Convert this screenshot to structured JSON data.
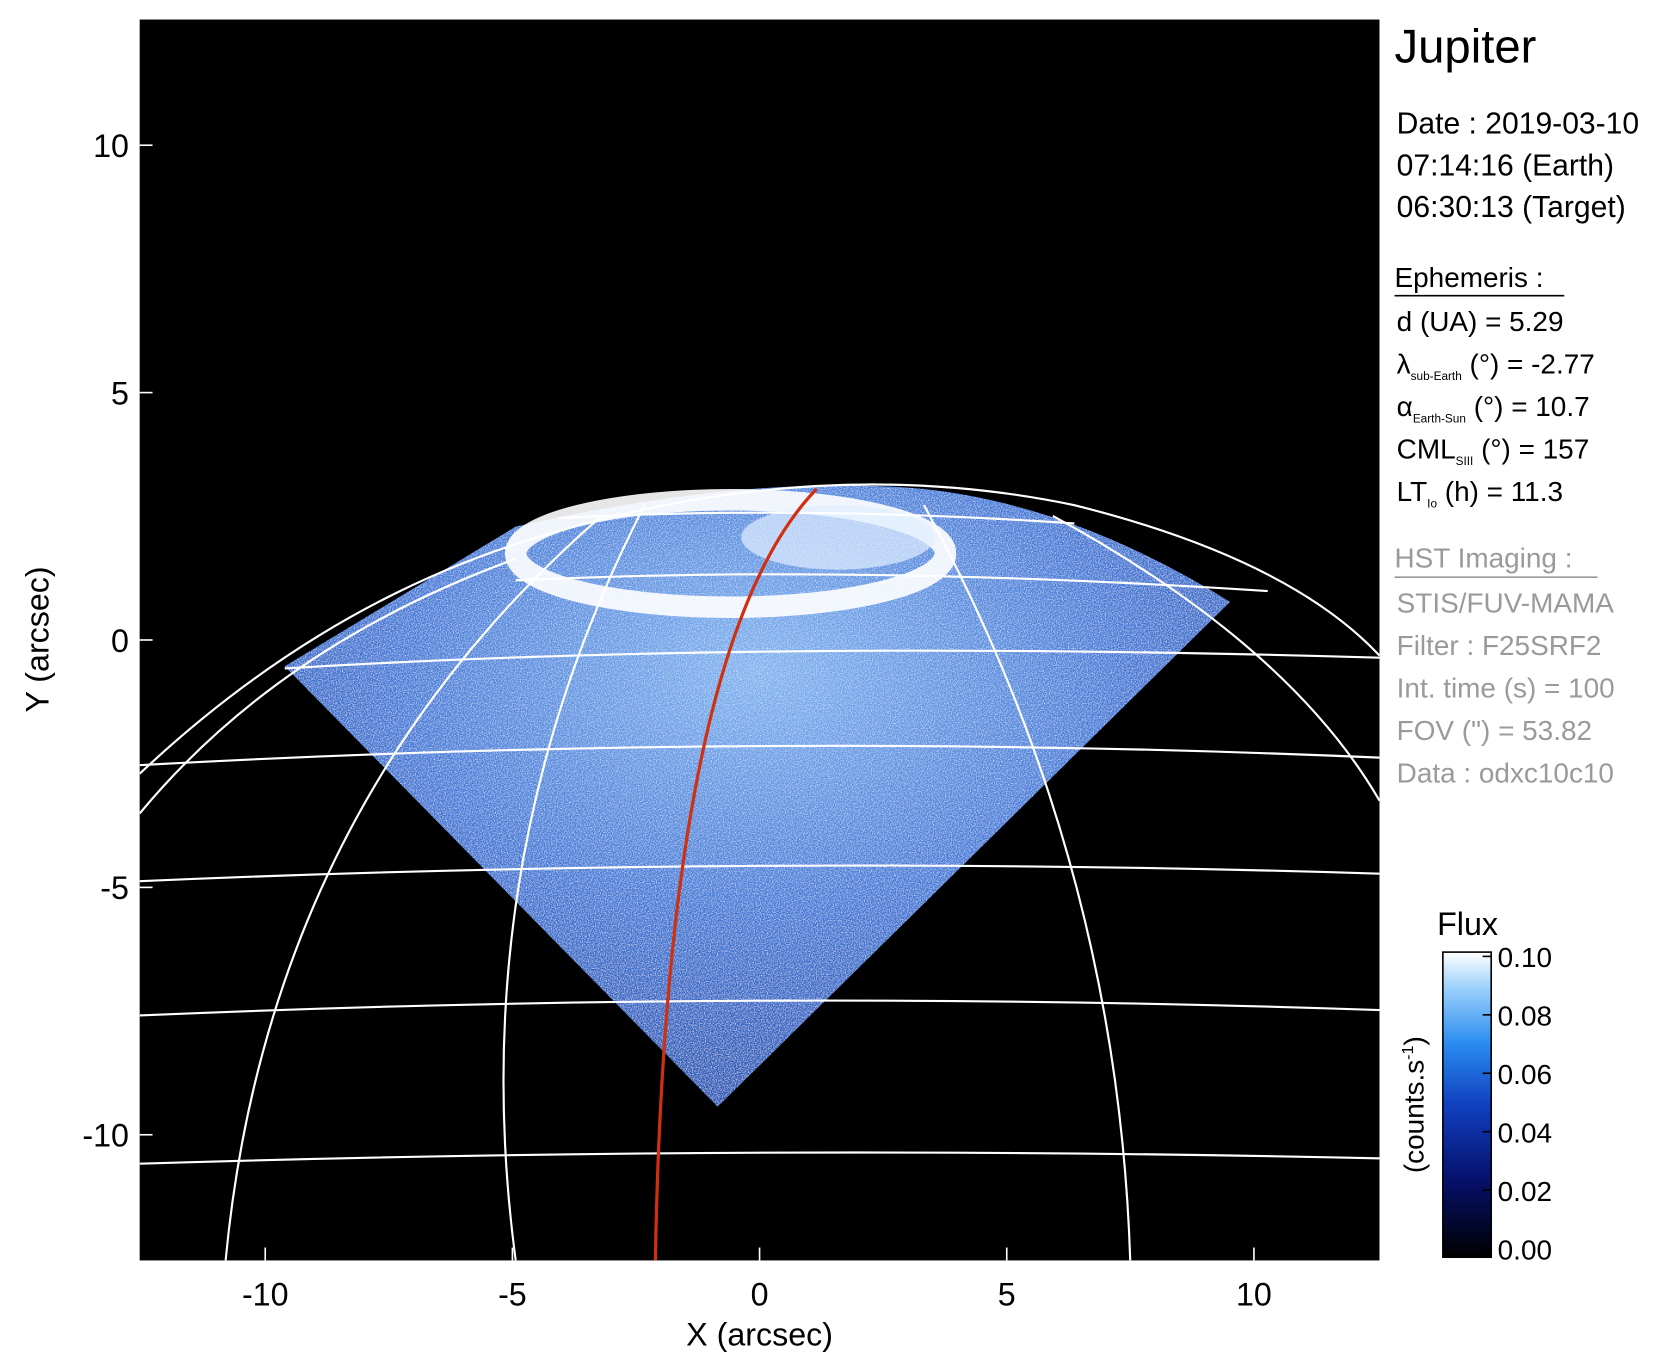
{
  "chart_data": {
    "type": "image",
    "x_label": "X (arcsec)",
    "y_label": "Y (arcsec)",
    "xlim": [
      -12.54,
      12.54
    ],
    "ylim": [
      -12.54,
      12.54
    ],
    "xticks": [
      -10,
      -5,
      0,
      5,
      10
    ],
    "yticks": [
      -10,
      -5,
      0,
      5,
      10
    ],
    "colorbar": {
      "title": "Flux",
      "unit": {
        "text": "(counts.s",
        "sup": "-1",
        "end": ")"
      },
      "clim": [
        0,
        0.1
      ],
      "ticks": [
        {
          "value": 0,
          "label": "0.00"
        },
        0.02,
        0.04,
        0.06,
        0.08,
        {
          "value": 0.1,
          "label": "0.10"
        }
      ]
    },
    "info": {
      "title": "Jupiter",
      "date_lines": [
        "Date : 2019-03-10",
        "07:14:16 (Earth)",
        "06:30:13 (Target)"
      ],
      "ephemeris_heading": "Ephemeris :",
      "ephemeris": [
        {
          "main": "d (UA)    = 5.29"
        },
        {
          "main": "λ",
          "sub": "sub-Earth",
          "rest": " (°) = -2.77"
        },
        {
          "main": "α",
          "sub": "Earth-Sun",
          "rest": " (°) = 10.7"
        },
        {
          "main": "CML",
          "sub": "SIII",
          "rest": " (°) = 157"
        },
        {
          "main": "LT",
          "sub": "Io",
          "rest": " (h) = 11.3"
        }
      ],
      "imaging_heading": "HST Imaging :",
      "imaging": [
        "STIS/FUV-MAMA",
        "Filter : F25SRF2",
        "Int. time (s) = 100",
        "FOV (\") = 53.82",
        "Data : odxc10c10"
      ]
    }
  }
}
